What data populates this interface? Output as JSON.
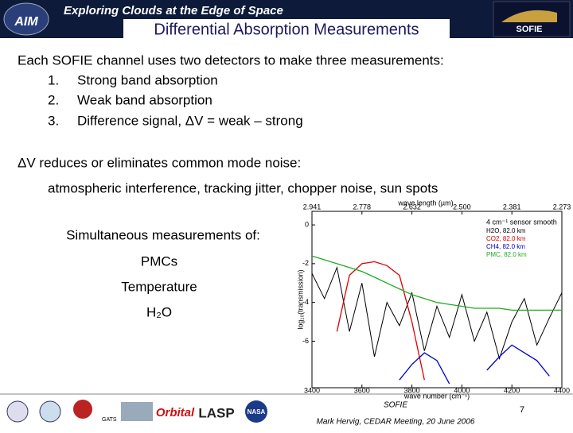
{
  "header": {
    "logo_left": "AIM",
    "banner": "Exploring Clouds at the Edge of Space",
    "logo_right": "SOFIE",
    "title": "Differential Absorption Measurements"
  },
  "body": {
    "intro": "Each SOFIE channel uses two detectors to make three measurements:",
    "list": [
      {
        "num": "1.",
        "text": "Strong band absorption"
      },
      {
        "num": "2.",
        "text": "Weak band absorption"
      },
      {
        "num": "3.",
        "text": "Difference signal,  ΔV = weak – strong"
      }
    ],
    "dv": "ΔV reduces or eliminates common mode noise:",
    "dv_detail": "atmospheric interference, tracking jitter, chopper noise, sun spots",
    "simul": "Simultaneous measurements of:",
    "items": [
      "PMCs",
      "Temperature",
      "H₂O"
    ]
  },
  "chart_data": {
    "type": "line",
    "x_label": "wave number (cm⁻¹)",
    "x2_label": "wave length (µm)",
    "y_label": "log₁₀(transmission)",
    "legend_title": "4 cm⁻¹ sensor smooth",
    "legend": "top-right",
    "x": [
      3400,
      3450,
      3500,
      3550,
      3600,
      3650,
      3700,
      3750,
      3800,
      3850,
      3900,
      3950,
      4000,
      4050,
      4100,
      4150,
      4200,
      4250,
      4300,
      4350,
      4400
    ],
    "series": [
      {
        "name": "H2O, 82.0 km",
        "color": "#000000",
        "values": [
          -2.5,
          -3.8,
          -2.2,
          -5.5,
          -3.0,
          -6.8,
          -4.0,
          -5.2,
          -3.5,
          -6.5,
          -4.2,
          -5.8,
          -3.6,
          -6.0,
          -4.5,
          -6.9,
          -5.0,
          -3.8,
          -6.2,
          -4.8,
          -3.5
        ]
      },
      {
        "name": "CO2, 82.0 km",
        "color": "#dd0000",
        "values": [
          null,
          null,
          -5.5,
          -2.6,
          -2.0,
          -1.9,
          -2.1,
          -2.6,
          -5.0,
          -8.0,
          null,
          null,
          null,
          null,
          null,
          null,
          null,
          null,
          null,
          null,
          null
        ]
      },
      {
        "name": "CH4, 82.0 km",
        "color": "#0000cc",
        "values": [
          null,
          null,
          null,
          null,
          null,
          null,
          null,
          -8.0,
          -7.2,
          -6.6,
          -7.0,
          -8.2,
          null,
          null,
          -7.5,
          -6.8,
          -6.2,
          -6.6,
          -7.0,
          -7.8,
          null
        ]
      },
      {
        "name": "PMC, 82.0 km",
        "color": "#22aa22",
        "values": [
          -1.6,
          -1.8,
          -2.0,
          -2.2,
          -2.4,
          -2.7,
          -3.0,
          -3.3,
          -3.6,
          -3.8,
          -4.0,
          -4.1,
          -4.2,
          -4.3,
          -4.3,
          -4.3,
          -4.4,
          -4.4,
          -4.4,
          -4.4,
          -4.4
        ]
      }
    ],
    "xlim": [
      3400,
      4400
    ],
    "xticks": [
      3400,
      3600,
      3800,
      4000,
      4200,
      4400
    ],
    "x2ticks": [
      {
        "value": 3400,
        "label": "2.941"
      },
      {
        "value": 3600,
        "label": "2.778"
      },
      {
        "value": 3800,
        "label": "2.632"
      },
      {
        "value": 4000,
        "label": "2.500"
      },
      {
        "value": 4200,
        "label": "2.381"
      },
      {
        "value": 4400,
        "label": "2.273"
      }
    ],
    "ylim": [
      -8.4,
      0.7
    ],
    "yticks": [
      0,
      -2,
      -4,
      -6
    ]
  },
  "footer": {
    "logos": [
      "GATS",
      "Orbital",
      "LASP",
      "NASA"
    ],
    "caption": "SOFIE",
    "credit": "Mark Hervig, CEDAR Meeting, 20 June 2006",
    "page": "7"
  }
}
